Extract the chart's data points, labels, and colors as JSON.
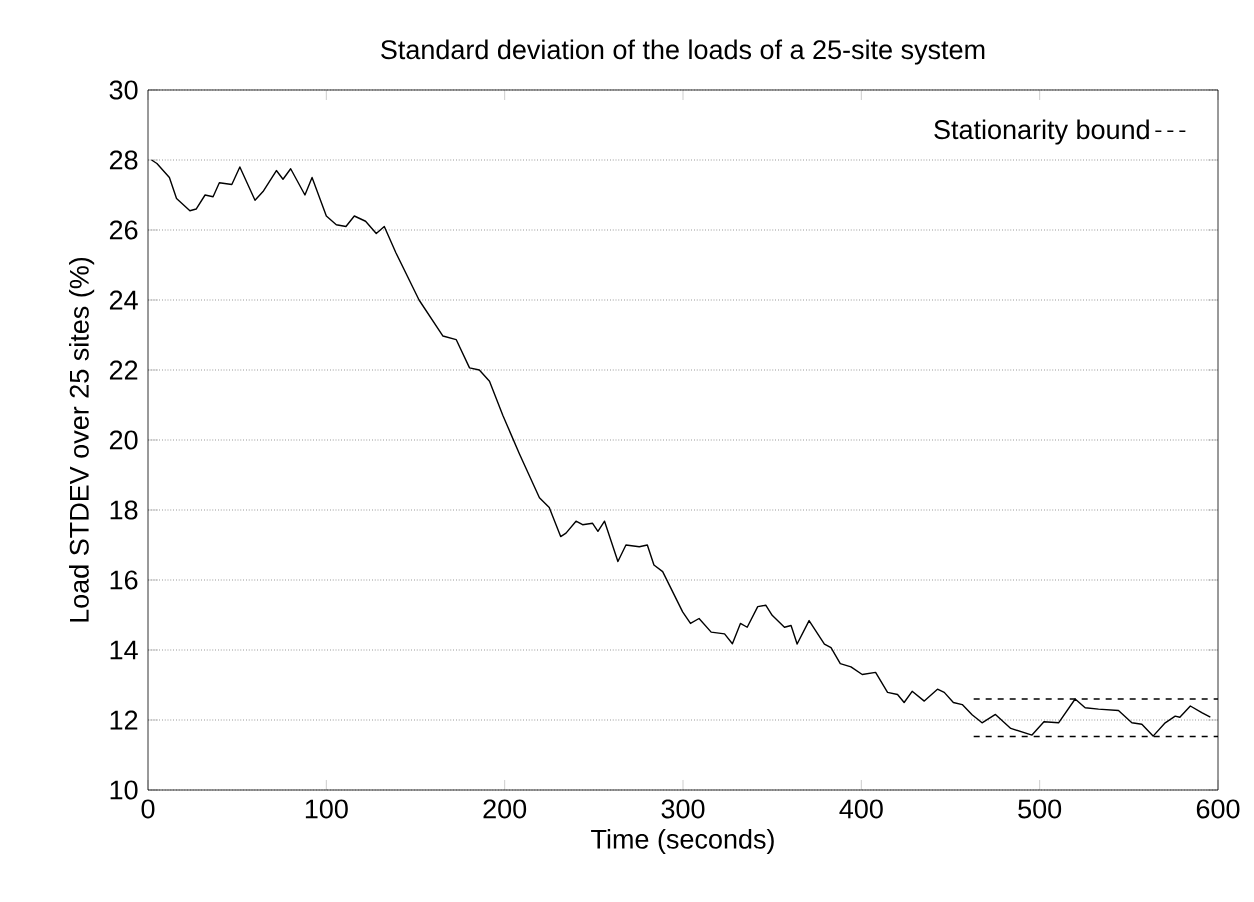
{
  "chart_data": {
    "type": "line",
    "title": "Standard deviation of the loads of a 25-site system",
    "xlabel": "Time (seconds)",
    "ylabel": "Load STDEV over 25 sites (%)",
    "xlim": [
      0,
      600
    ],
    "ylim": [
      10,
      30
    ],
    "xticks": [
      0,
      100,
      200,
      300,
      400,
      500,
      600
    ],
    "yticks": [
      10,
      12,
      14,
      16,
      18,
      20,
      22,
      24,
      26,
      28,
      30
    ],
    "grid": "y",
    "legend": "top right",
    "series": [
      {
        "color": "#000000",
        "line_style": "solid",
        "x": [
          2,
          5,
          12,
          16,
          23.5,
          27,
          32,
          36.5,
          40,
          47,
          51.5,
          60,
          64.5,
          72,
          75.7,
          80,
          88,
          92,
          100,
          105.6,
          111,
          115.7,
          122,
          128,
          132.5,
          139,
          152,
          165.4,
          172.8,
          180.3,
          185.8,
          191.5,
          199,
          208.3,
          219.5,
          225,
          231.4,
          234.4,
          240,
          243.7,
          249.3,
          252.3,
          256,
          263.5,
          268,
          275.5,
          280,
          283.7,
          288.6,
          299.8,
          304.2,
          309,
          315.8,
          323.3,
          327.7,
          332.2,
          336,
          341.9,
          346.4,
          350,
          356.9,
          360.6,
          364,
          370.7,
          379.3,
          383,
          388.2,
          394.2,
          400.5,
          408,
          414.7,
          420.3,
          424,
          428.5,
          435.3,
          442.7,
          446.5,
          451.6,
          456.6,
          462.1,
          467.7,
          475.2,
          483.8,
          495.7,
          502.4,
          510.6,
          519.9,
          525.5,
          533,
          544.2,
          551.7,
          557.3,
          563.6,
          570.4,
          576,
          578.6,
          584.5,
          590.9,
          595.7
        ],
        "values": [
          28.0,
          27.9,
          27.5,
          26.9,
          26.55,
          26.6,
          27.0,
          26.95,
          27.35,
          27.3,
          27.8,
          26.85,
          27.1,
          27.7,
          27.45,
          27.75,
          27.0,
          27.5,
          26.4,
          26.15,
          26.1,
          26.4,
          26.25,
          25.9,
          26.1,
          25.35,
          24.0,
          22.97,
          22.87,
          22.06,
          22.0,
          21.68,
          20.7,
          19.6,
          18.35,
          18.07,
          17.24,
          17.34,
          17.68,
          17.58,
          17.62,
          17.39,
          17.68,
          16.53,
          17.0,
          16.95,
          17.0,
          16.43,
          16.24,
          15.09,
          14.76,
          14.9,
          14.51,
          14.46,
          14.18,
          14.76,
          14.65,
          15.24,
          15.28,
          14.99,
          14.65,
          14.7,
          14.17,
          14.84,
          14.17,
          14.07,
          13.61,
          13.52,
          13.3,
          13.36,
          12.79,
          12.73,
          12.5,
          12.82,
          12.54,
          12.88,
          12.79,
          12.5,
          12.44,
          12.15,
          11.92,
          12.16,
          11.76,
          11.57,
          11.95,
          11.92,
          12.6,
          12.35,
          12.31,
          12.27,
          11.92,
          11.88,
          11.54,
          11.92,
          12.11,
          12.08,
          12.4,
          12.21,
          12.08
        ]
      },
      {
        "name": "Stationarity bound",
        "color": "#000000",
        "line_style": "dashed",
        "x": [
          463,
          600
        ],
        "values": [
          12.6,
          12.6
        ]
      },
      {
        "color": "#000000",
        "line_style": "dashed",
        "x": [
          463,
          600
        ],
        "values": [
          11.53,
          11.53
        ]
      }
    ]
  }
}
